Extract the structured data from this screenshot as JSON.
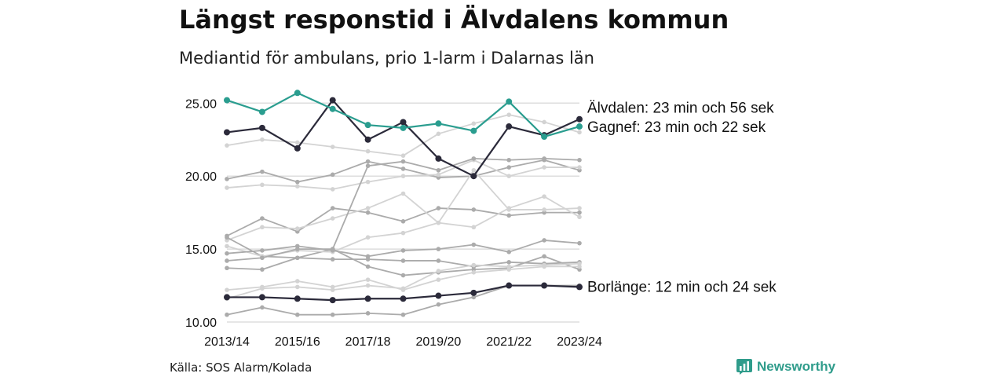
{
  "header": {
    "title": "Längst responstid i Älvdalens kommun",
    "subtitle": "Mediantid för ambulans, prio 1-larm i Dalarnas län"
  },
  "footer": {
    "source": "Källa: SOS Alarm/Kolada",
    "brand": "Newsworthy"
  },
  "colors": {
    "highlight_dark": "#2b2a3a",
    "highlight_teal": "#2a9d8f",
    "background_light": "#d3d3d3",
    "background_mid": "#ababab",
    "gridline": "#dddddd"
  },
  "chart_data": {
    "type": "line",
    "title": "Längst responstid i Älvdalens kommun",
    "subtitle": "Mediantid för ambulans, prio 1-larm i Dalarnas län",
    "xlabel": "",
    "ylabel": "",
    "x": [
      "2013/14",
      "2014/15",
      "2015/16",
      "2016/17",
      "2017/18",
      "2018/19",
      "2019/20",
      "2020/21",
      "2021/22",
      "2022/23",
      "2023/24"
    ],
    "x_tick_labels": [
      "2013/14",
      "2015/16",
      "2017/18",
      "2019/20",
      "2021/22",
      "2023/24"
    ],
    "y_ticks": [
      "10.00",
      "15.00",
      "20.00",
      "25.00"
    ],
    "ylim": [
      10,
      26
    ],
    "grid": "horizontal",
    "series": [
      {
        "name": "Älvdalen",
        "role": "highlight",
        "color": "#2b2a3a",
        "values": [
          23.0,
          23.3,
          21.9,
          25.2,
          22.5,
          23.7,
          21.2,
          20.0,
          23.4,
          22.8,
          23.9
        ]
      },
      {
        "name": "Gagnef",
        "role": "highlight",
        "color": "#2a9d8f",
        "values": [
          25.2,
          24.4,
          25.7,
          24.6,
          23.5,
          23.3,
          23.6,
          23.1,
          25.1,
          22.7,
          23.4
        ]
      },
      {
        "name": "Borlänge",
        "role": "highlight",
        "color": "#2b2a3a",
        "values": [
          11.7,
          11.7,
          11.6,
          11.5,
          11.6,
          11.6,
          11.8,
          12.0,
          12.5,
          12.5,
          12.4
        ]
      },
      {
        "role": "background",
        "color": "#d3d3d3",
        "values": [
          22.1,
          22.5,
          22.3,
          22.0,
          21.7,
          21.4,
          22.9,
          23.6,
          24.2,
          23.7,
          23.0
        ]
      },
      {
        "role": "background",
        "color": "#ababab",
        "values": [
          19.8,
          20.3,
          19.6,
          20.1,
          21.0,
          20.5,
          19.9,
          20.0,
          20.6,
          21.1,
          20.4
        ]
      },
      {
        "role": "background",
        "color": "#d3d3d3",
        "values": [
          19.2,
          19.4,
          19.3,
          19.1,
          19.6,
          20.0,
          20.1,
          21.1,
          20.0,
          20.6,
          20.6
        ]
      },
      {
        "role": "background",
        "color": "#ababab",
        "values": [
          15.9,
          17.1,
          16.2,
          17.8,
          17.5,
          16.9,
          17.8,
          17.7,
          17.3,
          17.5,
          17.5
        ]
      },
      {
        "role": "background",
        "color": "#d3d3d3",
        "values": [
          15.6,
          16.5,
          16.4,
          17.1,
          17.8,
          18.8,
          16.8,
          16.5,
          17.8,
          18.6,
          17.2
        ]
      },
      {
        "role": "background",
        "color": "#ababab",
        "values": [
          15.8,
          14.5,
          14.4,
          15.0,
          20.7,
          21.0,
          20.4,
          21.2,
          21.1,
          21.2,
          21.1
        ]
      },
      {
        "role": "background",
        "color": "#d3d3d3",
        "values": [
          15.2,
          14.5,
          14.9,
          14.8,
          15.8,
          16.1,
          16.8,
          20.4,
          17.7,
          17.7,
          17.8
        ]
      },
      {
        "role": "background",
        "color": "#ababab",
        "values": [
          14.7,
          14.9,
          15.2,
          14.9,
          14.5,
          14.9,
          15.0,
          15.3,
          14.8,
          15.6,
          15.4
        ]
      },
      {
        "role": "background",
        "color": "#ababab",
        "values": [
          14.2,
          14.4,
          15.0,
          15.0,
          13.8,
          13.2,
          13.4,
          13.6,
          13.7,
          14.5,
          13.6
        ]
      },
      {
        "role": "background",
        "color": "#ababab",
        "values": [
          13.7,
          13.6,
          14.4,
          14.3,
          14.3,
          14.2,
          14.2,
          13.8,
          14.1,
          14.0,
          14.1
        ]
      },
      {
        "role": "background",
        "color": "#d3d3d3",
        "values": [
          12.2,
          12.4,
          12.8,
          12.4,
          12.9,
          12.2,
          12.9,
          13.4,
          13.6,
          13.8,
          13.8
        ]
      },
      {
        "role": "background",
        "color": "#d3d3d3",
        "values": [
          11.6,
          12.3,
          12.4,
          12.2,
          12.5,
          12.3,
          13.5,
          13.9,
          13.8,
          13.9,
          14.0
        ]
      },
      {
        "role": "background",
        "color": "#ababab",
        "values": [
          10.5,
          11.0,
          10.5,
          10.5,
          10.6,
          10.5,
          11.2,
          11.7,
          12.5,
          12.5,
          12.5
        ]
      }
    ],
    "end_labels": [
      {
        "series": "Älvdalen",
        "text": "Älvdalen: 23 min och 56 sek"
      },
      {
        "series": "Gagnef",
        "text": "Gagnef: 23 min och 22 sek"
      },
      {
        "series": "Borlänge",
        "text": "Borlänge: 12 min och 24 sek"
      }
    ]
  }
}
